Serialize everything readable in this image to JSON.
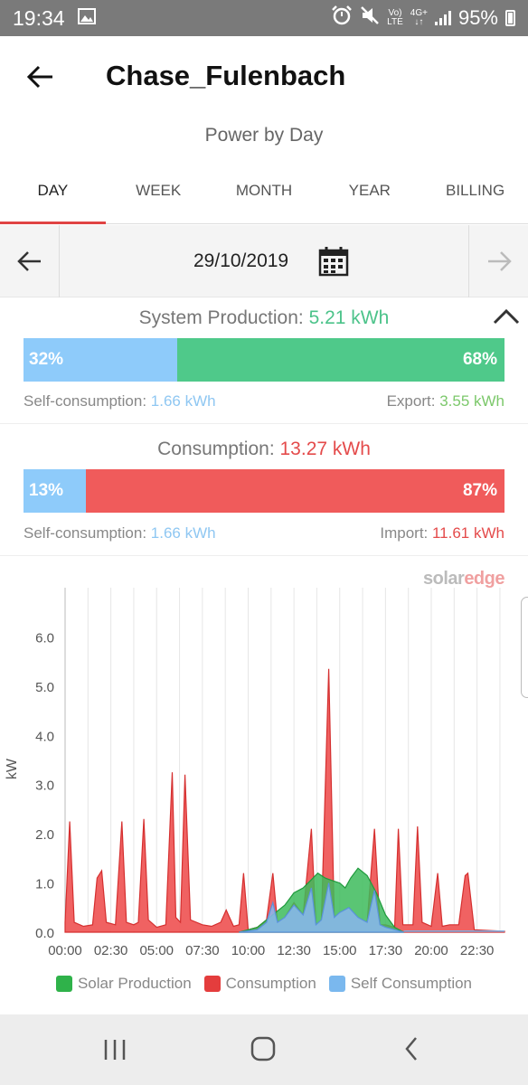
{
  "status_bar": {
    "time": "19:34",
    "battery": "95%",
    "volte_line1": "Vo)",
    "volte_line2": "LTE",
    "net": "4G+",
    "icons": [
      "gallery-icon",
      "alarm-icon",
      "mute-icon",
      "signal-icon",
      "battery-icon"
    ]
  },
  "app_bar": {
    "title": "Chase_Fulenbach"
  },
  "subtitle": "Power by Day",
  "tabs": [
    {
      "label": "DAY",
      "active": true
    },
    {
      "label": "WEEK",
      "active": false
    },
    {
      "label": "MONTH",
      "active": false
    },
    {
      "label": "YEAR",
      "active": false
    },
    {
      "label": "BILLING",
      "active": false
    }
  ],
  "date_bar": {
    "date": "29/10/2019"
  },
  "production": {
    "label": "System Production: ",
    "value": "5.21 kWh",
    "self_pct": 32,
    "export_pct": 68,
    "self_pct_label": "32%",
    "export_pct_label": "68%",
    "self_label": "Self-consumption: ",
    "self_value": "1.66 kWh",
    "export_label": "Export: ",
    "export_value": "3.55 kWh"
  },
  "consumption": {
    "label": "Consumption: ",
    "value": "13.27 kWh",
    "self_pct": 13,
    "import_pct": 87,
    "self_pct_label": "13%",
    "import_pct_label": "87%",
    "self_label": "Self-consumption: ",
    "self_value": "1.66 kWh",
    "import_label": "Import: ",
    "import_value": "11.61 kWh"
  },
  "logo": {
    "solar": "solar",
    "edge": "edge"
  },
  "colors": {
    "solar": "#2fb24a",
    "consumption": "#e43d3d",
    "self": "#7ab8ee",
    "green_bar": "#4fc98a",
    "blue_bar": "#8ecbfa",
    "red_bar": "#f05b5b"
  },
  "chart_data": {
    "type": "area",
    "ylabel": "kW",
    "ylim": [
      0,
      7
    ],
    "yticks": [
      "0.0",
      "1.0",
      "2.0",
      "3.0",
      "4.0",
      "5.0",
      "6.0"
    ],
    "xticks": [
      "00:00",
      "02:30",
      "05:00",
      "07:30",
      "10:00",
      "12:30",
      "15:00",
      "17:30",
      "20:00",
      "22:30"
    ],
    "x_range_hours": [
      0,
      24
    ],
    "series": [
      {
        "name": "Consumption",
        "points": [
          [
            0,
            0.2
          ],
          [
            0.25,
            2.25
          ],
          [
            0.5,
            0.2
          ],
          [
            1,
            0.12
          ],
          [
            1.5,
            0.15
          ],
          [
            1.75,
            1.1
          ],
          [
            2,
            1.25
          ],
          [
            2.25,
            0.2
          ],
          [
            2.75,
            0.15
          ],
          [
            3.1,
            2.25
          ],
          [
            3.35,
            0.2
          ],
          [
            3.75,
            0.15
          ],
          [
            4,
            0.2
          ],
          [
            4.3,
            2.3
          ],
          [
            4.55,
            0.25
          ],
          [
            5,
            0.1
          ],
          [
            5.5,
            0.15
          ],
          [
            5.85,
            3.25
          ],
          [
            6.05,
            0.3
          ],
          [
            6.3,
            0.2
          ],
          [
            6.55,
            3.2
          ],
          [
            6.85,
            0.25
          ],
          [
            7.5,
            0.15
          ],
          [
            8,
            0.12
          ],
          [
            8.5,
            0.2
          ],
          [
            8.8,
            0.45
          ],
          [
            9.2,
            0.12
          ],
          [
            9.5,
            0.15
          ],
          [
            9.75,
            1.2
          ],
          [
            10,
            0.05
          ],
          [
            10.5,
            0.1
          ],
          [
            11,
            0.25
          ],
          [
            11.35,
            1.2
          ],
          [
            11.6,
            0.2
          ],
          [
            12,
            0.3
          ],
          [
            12.5,
            0.6
          ],
          [
            13,
            0.35
          ],
          [
            13.45,
            2.1
          ],
          [
            13.7,
            0.15
          ],
          [
            14,
            0.25
          ],
          [
            14.4,
            5.35
          ],
          [
            14.7,
            0.3
          ],
          [
            15,
            0.4
          ],
          [
            15.5,
            0.5
          ],
          [
            16,
            0.3
          ],
          [
            16.5,
            0.2
          ],
          [
            16.9,
            2.1
          ],
          [
            17.2,
            0.15
          ],
          [
            17.5,
            0.15
          ],
          [
            18,
            0.1
          ],
          [
            18.2,
            2.1
          ],
          [
            18.45,
            0.15
          ],
          [
            19,
            0.15
          ],
          [
            19.25,
            2.15
          ],
          [
            19.5,
            0.2
          ],
          [
            20,
            0.12
          ],
          [
            20.35,
            1.2
          ],
          [
            20.6,
            0.12
          ],
          [
            21,
            0.15
          ],
          [
            21.5,
            0.15
          ],
          [
            21.85,
            1.15
          ],
          [
            22,
            1.2
          ],
          [
            22.35,
            0.05
          ],
          [
            24,
            0.02
          ]
        ]
      },
      {
        "name": "Solar Production",
        "points": [
          [
            9.5,
            0
          ],
          [
            10.5,
            0.1
          ],
          [
            11,
            0.25
          ],
          [
            11.5,
            0.4
          ],
          [
            12,
            0.55
          ],
          [
            12.5,
            0.8
          ],
          [
            13,
            0.9
          ],
          [
            13.4,
            1.05
          ],
          [
            13.8,
            1.2
          ],
          [
            14.2,
            1.1
          ],
          [
            14.6,
            1.05
          ],
          [
            15,
            1.0
          ],
          [
            15.3,
            0.9
          ],
          [
            15.6,
            1.1
          ],
          [
            16,
            1.3
          ],
          [
            16.5,
            1.15
          ],
          [
            17,
            0.8
          ],
          [
            17.5,
            0.35
          ],
          [
            18,
            0.1
          ],
          [
            18.5,
            0
          ]
        ]
      },
      {
        "name": "Self Consumption",
        "points": [
          [
            9.5,
            0
          ],
          [
            10.5,
            0.05
          ],
          [
            11,
            0.2
          ],
          [
            11.35,
            0.6
          ],
          [
            11.6,
            0.2
          ],
          [
            12,
            0.3
          ],
          [
            12.5,
            0.55
          ],
          [
            13,
            0.35
          ],
          [
            13.45,
            0.9
          ],
          [
            13.7,
            0.15
          ],
          [
            14,
            0.25
          ],
          [
            14.4,
            1.0
          ],
          [
            14.7,
            0.3
          ],
          [
            15,
            0.4
          ],
          [
            15.5,
            0.5
          ],
          [
            16,
            0.3
          ],
          [
            16.5,
            0.2
          ],
          [
            16.9,
            0.85
          ],
          [
            17.2,
            0.15
          ],
          [
            17.5,
            0.1
          ],
          [
            18,
            0.05
          ],
          [
            18.5,
            0
          ]
        ]
      }
    ],
    "legend": [
      "Solar Production",
      "Consumption",
      "Self Consumption"
    ],
    "legend_position": "bottom",
    "grid": true
  },
  "nav_bar": {
    "buttons": [
      "recents-button",
      "home-button",
      "back-button"
    ]
  }
}
